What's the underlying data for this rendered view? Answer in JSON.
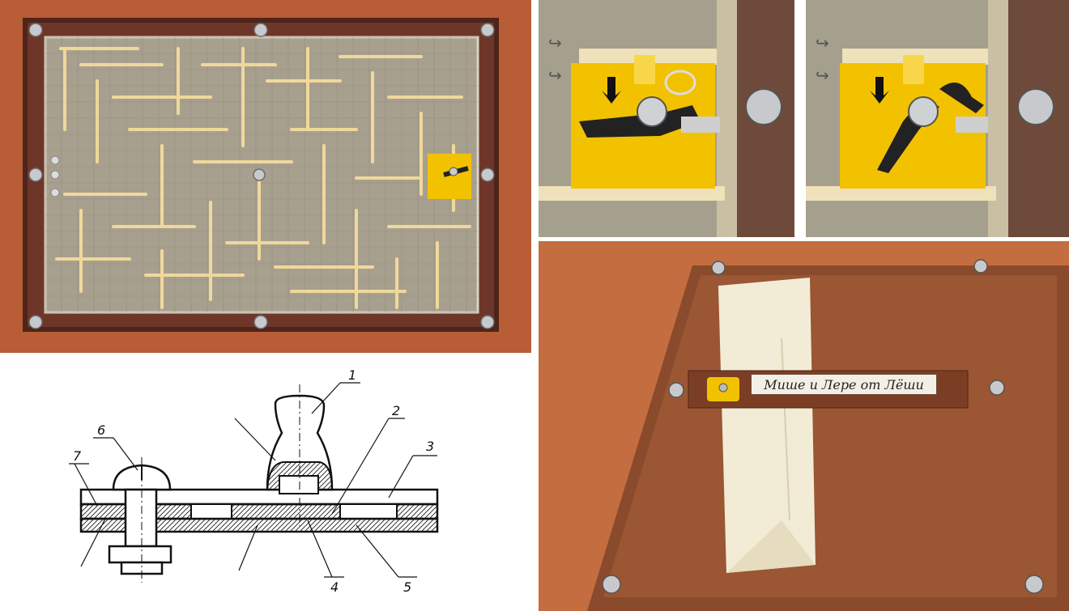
{
  "photos": {
    "maze": {
      "icon": "maze-board"
    },
    "closeup_a": {
      "icon": "latch-open"
    },
    "closeup_b": {
      "icon": "latch-closed"
    },
    "gift": {
      "label_text": "Мише и Лере от Лёши"
    }
  },
  "drawing": {
    "callouts": [
      "1",
      "2",
      "3",
      "4",
      "5",
      "6",
      "7"
    ]
  },
  "colors": {
    "wood_table": "#b45a33",
    "frame_brown": "#5a2b1f",
    "board_gray": "#a59e8c",
    "stick": "#f0d79a",
    "latch_yellow": "#f2c200",
    "envelope": "#f2ecd6"
  }
}
